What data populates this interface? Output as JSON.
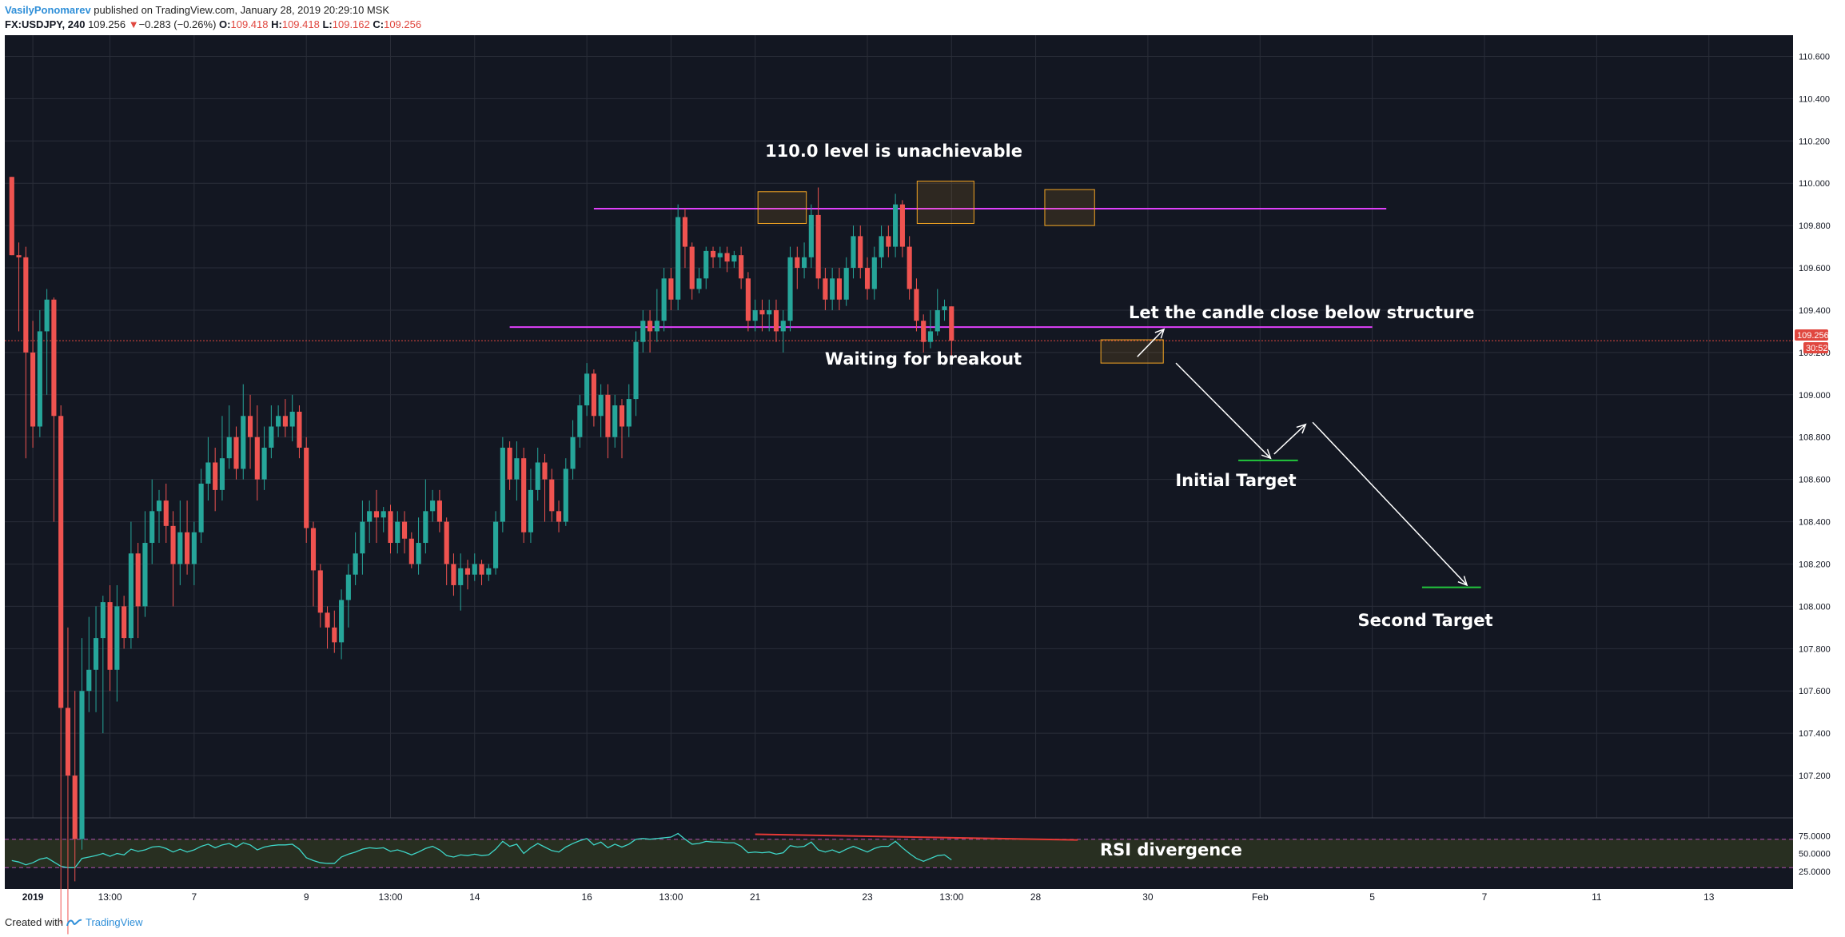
{
  "header": {
    "author": "VasilyPonomarev",
    "published": "published on TradingView.com, January 28, 2019 20:29:10 MSK",
    "symbol": "FX:USDJPY, 240",
    "last": "109.256",
    "change_arrow": "▼",
    "change": "−0.283 (−0.26%)",
    "o_label": "O:",
    "o": "109.418",
    "h_label": "H:",
    "h": "109.418",
    "l_label": "L:",
    "l": "109.162",
    "c_label": "C:",
    "c": "109.256"
  },
  "footer": {
    "created_with": "Created with",
    "brand": "TradingView"
  },
  "colors": {
    "background": "#131722",
    "grid": "#2a2e39",
    "up": "#26a69a",
    "down": "#ef5350",
    "level_line": "#e040fb",
    "box": "#f5a623",
    "rsi_line": "#3ed6c8",
    "rsi_band": "#3a4420",
    "divergence": "#e53935",
    "target": "#22c73c",
    "price_tag": "#e0473f"
  },
  "chart_data": {
    "type": "candlestick",
    "instrument": "FX:USDJPY",
    "timeframe": "240",
    "y_range": [
      107.0,
      110.7
    ],
    "y_ticks": [
      "110.600",
      "110.400",
      "110.200",
      "110.000",
      "109.800",
      "109.600",
      "109.400",
      "109.200",
      "109.000",
      "108.800",
      "108.600",
      "108.400",
      "108.200",
      "108.000",
      "107.800",
      "107.600",
      "107.400",
      "107.200"
    ],
    "y_tick_values": [
      110.6,
      110.4,
      110.2,
      110.0,
      109.8,
      109.6,
      109.4,
      109.2,
      109.0,
      108.8,
      108.6,
      108.4,
      108.2,
      108.0,
      107.8,
      107.6,
      107.4,
      107.2
    ],
    "x_range": [
      0,
      255
    ],
    "x_ticks": [
      {
        "label": "2019",
        "x": 3
      },
      {
        "label": "13:00",
        "x": 14
      },
      {
        "label": "7",
        "x": 26
      },
      {
        "label": "9",
        "x": 42
      },
      {
        "label": "13:00",
        "x": 54
      },
      {
        "label": "14",
        "x": 66
      },
      {
        "label": "16",
        "x": 82
      },
      {
        "label": "13:00",
        "x": 94
      },
      {
        "label": "21",
        "x": 106
      },
      {
        "label": "23",
        "x": 122
      },
      {
        "label": "13:00",
        "x": 134
      },
      {
        "label": "28",
        "x": 146
      },
      {
        "label": "30",
        "x": 162
      },
      {
        "label": "Feb",
        "x": 178
      },
      {
        "label": "5",
        "x": 194
      },
      {
        "label": "7",
        "x": 210
      },
      {
        "label": "11",
        "x": 226
      },
      {
        "label": "13",
        "x": 242
      }
    ],
    "candles": [
      [
        110.03,
        109.66,
        110.03,
        109.66
      ],
      [
        109.66,
        109.65,
        109.72,
        109.3
      ],
      [
        109.65,
        109.2,
        109.7,
        108.7
      ],
      [
        109.2,
        108.85,
        109.35,
        108.75
      ],
      [
        108.85,
        109.3,
        109.4,
        108.8
      ],
      [
        109.3,
        109.45,
        109.5,
        109.0
      ],
      [
        109.45,
        108.9,
        109.46,
        108.4
      ],
      [
        108.9,
        107.52,
        108.95,
        106.5
      ],
      [
        107.52,
        107.2,
        107.9,
        106.45
      ],
      [
        107.2,
        106.9,
        107.6,
        106.7
      ],
      [
        106.9,
        107.6,
        107.85,
        106.85
      ],
      [
        107.6,
        107.7,
        107.95,
        107.5
      ],
      [
        107.7,
        107.85,
        108.0,
        107.5
      ],
      [
        107.85,
        108.02,
        108.05,
        107.4
      ],
      [
        108.02,
        107.7,
        108.1,
        107.6
      ],
      [
        107.7,
        108.0,
        108.1,
        107.55
      ],
      [
        108.0,
        107.85,
        108.05,
        107.8
      ],
      [
        107.85,
        108.25,
        108.4,
        107.8
      ],
      [
        108.25,
        108.0,
        108.3,
        107.85
      ],
      [
        108.0,
        108.3,
        108.45,
        107.95
      ],
      [
        108.3,
        108.45,
        108.6,
        108.2
      ],
      [
        108.45,
        108.5,
        108.55,
        108.3
      ],
      [
        108.5,
        108.38,
        108.58,
        108.3
      ],
      [
        108.38,
        108.2,
        108.45,
        108.0
      ],
      [
        108.2,
        108.35,
        108.5,
        108.1
      ],
      [
        108.35,
        108.2,
        108.5,
        108.15
      ],
      [
        108.2,
        108.35,
        108.4,
        108.1
      ],
      [
        108.35,
        108.58,
        108.65,
        108.3
      ],
      [
        108.58,
        108.68,
        108.8,
        108.5
      ],
      [
        108.68,
        108.55,
        108.75,
        108.45
      ],
      [
        108.55,
        108.7,
        108.9,
        108.5
      ],
      [
        108.7,
        108.8,
        108.95,
        108.65
      ],
      [
        108.8,
        108.65,
        108.85,
        108.6
      ],
      [
        108.65,
        108.9,
        109.05,
        108.6
      ],
      [
        108.9,
        108.8,
        109.0,
        108.65
      ],
      [
        108.8,
        108.6,
        108.95,
        108.5
      ],
      [
        108.6,
        108.75,
        108.85,
        108.55
      ],
      [
        108.75,
        108.85,
        108.95,
        108.7
      ],
      [
        108.85,
        108.9,
        108.95,
        108.8
      ],
      [
        108.9,
        108.85,
        108.98,
        108.8
      ],
      [
        108.85,
        108.92,
        109.0,
        108.78
      ],
      [
        108.92,
        108.75,
        108.95,
        108.7
      ],
      [
        108.75,
        108.37,
        108.8,
        108.3
      ],
      [
        108.37,
        108.17,
        108.4,
        108.0
      ],
      [
        108.17,
        107.97,
        108.2,
        107.9
      ],
      [
        107.97,
        107.9,
        108.0,
        107.8
      ],
      [
        107.9,
        107.83,
        107.98,
        107.78
      ],
      [
        107.83,
        108.03,
        108.08,
        107.75
      ],
      [
        108.03,
        108.15,
        108.2,
        107.9
      ],
      [
        108.15,
        108.25,
        108.35,
        108.1
      ],
      [
        108.25,
        108.4,
        108.5,
        108.15
      ],
      [
        108.4,
        108.45,
        108.5,
        108.3
      ],
      [
        108.45,
        108.42,
        108.55,
        108.3
      ],
      [
        108.42,
        108.45,
        108.47,
        108.35
      ],
      [
        108.45,
        108.3,
        108.48,
        108.25
      ],
      [
        108.3,
        108.4,
        108.45,
        108.25
      ],
      [
        108.4,
        108.32,
        108.45,
        108.25
      ],
      [
        108.32,
        108.2,
        108.35,
        108.18
      ],
      [
        108.2,
        108.3,
        108.42,
        108.15
      ],
      [
        108.3,
        108.45,
        108.6,
        108.25
      ],
      [
        108.45,
        108.5,
        108.55,
        108.4
      ],
      [
        108.5,
        108.4,
        108.55,
        108.35
      ],
      [
        108.4,
        108.2,
        108.42,
        108.1
      ],
      [
        108.2,
        108.1,
        108.25,
        108.05
      ],
      [
        108.1,
        108.18,
        108.25,
        107.98
      ],
      [
        108.18,
        108.15,
        108.22,
        108.08
      ],
      [
        108.15,
        108.2,
        108.25,
        108.12
      ],
      [
        108.2,
        108.15,
        108.22,
        108.1
      ],
      [
        108.15,
        108.18,
        108.2,
        108.12
      ],
      [
        108.18,
        108.4,
        108.45,
        108.15
      ],
      [
        108.4,
        108.75,
        108.8,
        108.35
      ],
      [
        108.75,
        108.6,
        108.78,
        108.55
      ],
      [
        108.6,
        108.7,
        108.78,
        108.5
      ],
      [
        108.7,
        108.35,
        108.75,
        108.3
      ],
      [
        108.35,
        108.55,
        108.65,
        108.3
      ],
      [
        108.55,
        108.68,
        108.75,
        108.5
      ],
      [
        108.68,
        108.6,
        108.72,
        108.4
      ],
      [
        108.6,
        108.45,
        108.65,
        108.4
      ],
      [
        108.45,
        108.4,
        108.5,
        108.35
      ],
      [
        108.4,
        108.65,
        108.7,
        108.38
      ],
      [
        108.65,
        108.8,
        108.88,
        108.6
      ],
      [
        108.8,
        108.95,
        109.0,
        108.75
      ],
      [
        108.95,
        109.1,
        109.15,
        108.9
      ],
      [
        109.1,
        108.9,
        109.12,
        108.85
      ],
      [
        108.9,
        109.0,
        109.05,
        108.8
      ],
      [
        109.0,
        108.8,
        109.05,
        108.7
      ],
      [
        108.8,
        108.95,
        109.0,
        108.75
      ],
      [
        108.95,
        108.85,
        108.98,
        108.7
      ],
      [
        108.85,
        108.98,
        109.05,
        108.8
      ],
      [
        108.98,
        109.25,
        109.3,
        108.9
      ],
      [
        109.25,
        109.35,
        109.4,
        109.2
      ],
      [
        109.35,
        109.3,
        109.4,
        109.2
      ],
      [
        109.3,
        109.35,
        109.5,
        109.25
      ],
      [
        109.35,
        109.55,
        109.6,
        109.3
      ],
      [
        109.55,
        109.45,
        109.6,
        109.4
      ],
      [
        109.45,
        109.84,
        109.9,
        109.4
      ],
      [
        109.84,
        109.7,
        109.88,
        109.6
      ],
      [
        109.7,
        109.5,
        109.72,
        109.45
      ],
      [
        109.5,
        109.55,
        109.6,
        109.48
      ],
      [
        109.55,
        109.68,
        109.7,
        109.5
      ],
      [
        109.68,
        109.65,
        109.7,
        109.6
      ],
      [
        109.65,
        109.67,
        109.7,
        109.6
      ],
      [
        109.67,
        109.63,
        109.7,
        109.58
      ],
      [
        109.63,
        109.66,
        109.68,
        109.6
      ],
      [
        109.66,
        109.55,
        109.7,
        109.5
      ],
      [
        109.55,
        109.35,
        109.58,
        109.3
      ],
      [
        109.35,
        109.4,
        109.45,
        109.3
      ],
      [
        109.4,
        109.38,
        109.45,
        109.3
      ],
      [
        109.38,
        109.4,
        109.45,
        109.3
      ],
      [
        109.4,
        109.3,
        109.45,
        109.25
      ],
      [
        109.3,
        109.35,
        109.4,
        109.2
      ],
      [
        109.35,
        109.65,
        109.7,
        109.3
      ],
      [
        109.65,
        109.6,
        109.7,
        109.5
      ],
      [
        109.6,
        109.65,
        109.72,
        109.55
      ],
      [
        109.65,
        109.85,
        109.9,
        109.6
      ],
      [
        109.85,
        109.55,
        109.98,
        109.5
      ],
      [
        109.55,
        109.45,
        109.6,
        109.4
      ],
      [
        109.45,
        109.55,
        109.6,
        109.4
      ],
      [
        109.55,
        109.45,
        109.6,
        109.4
      ],
      [
        109.45,
        109.6,
        109.65,
        109.42
      ],
      [
        109.6,
        109.75,
        109.8,
        109.55
      ],
      [
        109.75,
        109.6,
        109.8,
        109.55
      ],
      [
        109.6,
        109.5,
        109.65,
        109.45
      ],
      [
        109.5,
        109.65,
        109.7,
        109.45
      ],
      [
        109.65,
        109.75,
        109.8,
        109.6
      ],
      [
        109.75,
        109.7,
        109.8,
        109.65
      ],
      [
        109.7,
        109.9,
        109.95,
        109.65
      ],
      [
        109.9,
        109.7,
        109.92,
        109.65
      ],
      [
        109.7,
        109.5,
        109.75,
        109.45
      ],
      [
        109.5,
        109.35,
        109.55,
        109.3
      ],
      [
        109.35,
        109.25,
        109.38,
        109.2
      ],
      [
        109.25,
        109.3,
        109.4,
        109.22
      ],
      [
        109.3,
        109.4,
        109.5,
        109.28
      ],
      [
        109.4,
        109.418,
        109.45,
        109.35
      ],
      [
        109.418,
        109.256,
        109.418,
        109.162
      ]
    ],
    "levels": [
      {
        "price": 109.88,
        "from": 83,
        "to": 196
      },
      {
        "price": 109.32,
        "from": 71,
        "to": 194
      }
    ],
    "boxes": [
      {
        "x0": 106.4,
        "x1": 113.3,
        "y0": 109.81,
        "y1": 109.96
      },
      {
        "x0": 129.1,
        "x1": 137.2,
        "y0": 109.81,
        "y1": 110.01
      },
      {
        "x0": 147.3,
        "x1": 154.4,
        "y0": 109.8,
        "y1": 109.97
      },
      {
        "x0": 155.3,
        "x1": 164.2,
        "y0": 109.15,
        "y1": 109.26
      }
    ],
    "current_price": 109.256,
    "price_tags": [
      "109.256",
      "30:52"
    ],
    "targets": [
      {
        "label": "Initial Target",
        "price": 108.69,
        "from": 174.9,
        "to": 183.4
      },
      {
        "label": "Second Target",
        "price": 108.09,
        "from": 201.1,
        "to": 209.5
      }
    ],
    "arrows": [
      {
        "from": [
          160.5,
          109.18
        ],
        "to": [
          164.3,
          109.31
        ]
      },
      {
        "from": [
          166.0,
          109.15
        ],
        "to": [
          179.5,
          108.7
        ]
      },
      {
        "from": [
          180.0,
          108.72
        ],
        "to": [
          184.5,
          108.86
        ]
      },
      {
        "from": [
          185.5,
          108.87
        ],
        "to": [
          207.5,
          108.1
        ]
      }
    ],
    "annotations": [
      "110.0 level is unachievable",
      "Waiting for breakout",
      "Let the candle close below structure",
      "Initial Target",
      "Second Target",
      "RSI divergence"
    ],
    "rsi": {
      "y_range": [
        0,
        100
      ],
      "y_ticks": [
        "75.0000",
        "50.0000",
        "25.0000"
      ],
      "y_tick_values": [
        75,
        50,
        25
      ],
      "overbought": 70,
      "oversold": 30,
      "values": [
        40,
        38,
        34,
        37,
        42,
        44,
        38,
        32,
        30,
        30,
        43,
        45,
        47,
        50,
        46,
        50,
        48,
        56,
        53,
        55,
        59,
        60,
        57,
        52,
        56,
        52,
        55,
        60,
        63,
        58,
        62,
        64,
        59,
        65,
        62,
        55,
        59,
        61,
        62,
        62,
        63,
        56,
        44,
        40,
        37,
        36,
        36,
        45,
        49,
        52,
        56,
        58,
        57,
        58,
        53,
        55,
        52,
        48,
        52,
        57,
        60,
        55,
        47,
        45,
        48,
        47,
        49,
        47,
        48,
        56,
        67,
        60,
        63,
        50,
        58,
        64,
        59,
        54,
        52,
        59,
        64,
        68,
        71,
        62,
        66,
        58,
        63,
        59,
        63,
        70,
        71,
        70,
        71,
        72,
        73,
        78,
        70,
        63,
        64,
        67,
        66,
        66,
        65,
        65,
        60,
        51,
        52,
        51,
        52,
        49,
        51,
        61,
        59,
        60,
        66,
        55,
        52,
        55,
        51,
        56,
        60,
        56,
        52,
        57,
        60,
        60,
        67,
        58,
        50,
        43,
        39,
        43,
        47,
        48,
        41
      ],
      "divergence": {
        "from": [
          106,
          77
        ],
        "to": [
          152,
          69
        ]
      }
    }
  }
}
